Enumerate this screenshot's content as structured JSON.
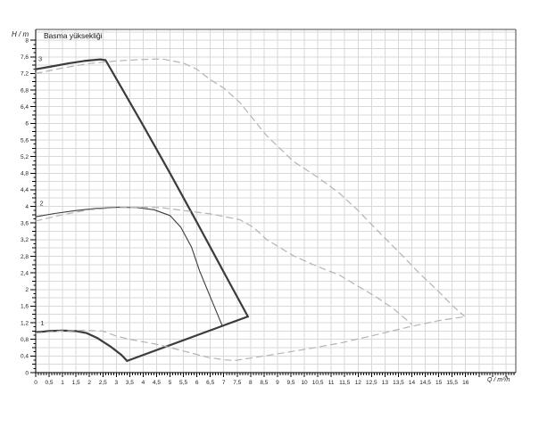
{
  "page": {
    "background": "#ffffff"
  },
  "chart_data": {
    "type": "line",
    "title": "Basma yüksekliği",
    "y_axis_label": "H / m",
    "x_axis_label": "Q / m³/h",
    "x_range": [
      0,
      17.87
    ],
    "y_range": [
      0,
      8.26
    ],
    "grid": true,
    "x_grid_step": 0.5,
    "y_grid_step": 0.2,
    "x_tick_label_step": 0.5,
    "y_tick_label_step": 0.4,
    "x_tick_labels": [
      "0",
      "0,5",
      "1",
      "1,5",
      "2",
      "2,5",
      "3",
      "3,5",
      "4",
      "4,5",
      "5",
      "5,5",
      "6",
      "6,5",
      "7",
      "7,5",
      "8",
      "8,5",
      "9",
      "9,5",
      "10",
      "10,5",
      "11",
      "11,5",
      "12",
      "12,5",
      "13",
      "13,5",
      "14",
      "14,5",
      "15",
      "15,5",
      "16"
    ],
    "y_tick_labels": [
      "0",
      "0,4",
      "0,8",
      "1,2",
      "1,6",
      "2",
      "2,4",
      "2,8",
      "3,2",
      "3,6",
      "4",
      "4,4",
      "4,8",
      "5,2",
      "5,6",
      "6",
      "6,4",
      "6,8",
      "7,2",
      "7,6",
      "8"
    ],
    "colors": {
      "solid_curve": "#3c3c3c",
      "dashed_curve": "#b4b4b4",
      "grid": "#d9d9d9",
      "axis": "#000000",
      "border": "#4a4a4a",
      "tick_text": "#222222"
    },
    "legend_position": "none",
    "curve_labels": [
      {
        "text": "3",
        "x": 0.1,
        "y": 7.5
      },
      {
        "text": "2",
        "x": 0.15,
        "y": 4.02
      },
      {
        "text": "1",
        "x": 0.18,
        "y": 1.14
      }
    ],
    "series": [
      {
        "name": "curve-3-max-speed-solid",
        "style": "solid",
        "width": 2.2,
        "points": [
          [
            0,
            7.3
          ],
          [
            0.6,
            7.37
          ],
          [
            1.2,
            7.44
          ],
          [
            1.8,
            7.5
          ],
          [
            2.4,
            7.54
          ],
          [
            2.6,
            7.52
          ],
          [
            3.2,
            6.85
          ],
          [
            4,
            5.95
          ],
          [
            5,
            4.8
          ],
          [
            6,
            3.62
          ],
          [
            7,
            2.42
          ],
          [
            7.9,
            1.35
          ]
        ]
      },
      {
        "name": "solid-envelope-max-flow-edge",
        "style": "solid",
        "width": 2.2,
        "points": [
          [
            3.4,
            0.28
          ],
          [
            7.9,
            1.35
          ]
        ]
      },
      {
        "name": "curve-1-min-speed-solid",
        "style": "solid",
        "width": 2.2,
        "points": [
          [
            0,
            0.97
          ],
          [
            0.5,
            1.0
          ],
          [
            1,
            1.01
          ],
          [
            1.5,
            1.0
          ],
          [
            1.9,
            0.95
          ],
          [
            2.3,
            0.83
          ],
          [
            2.8,
            0.62
          ],
          [
            3.2,
            0.42
          ],
          [
            3.4,
            0.28
          ]
        ]
      },
      {
        "name": "curve-2-mid-speed-solid",
        "style": "solid",
        "width": 1.1,
        "points": [
          [
            0,
            3.75
          ],
          [
            0.7,
            3.83
          ],
          [
            1.5,
            3.9
          ],
          [
            2.2,
            3.95
          ],
          [
            3,
            3.98
          ],
          [
            3.8,
            3.97
          ],
          [
            4.4,
            3.92
          ],
          [
            5,
            3.78
          ],
          [
            5.4,
            3.5
          ],
          [
            5.8,
            3.02
          ],
          [
            6.1,
            2.45
          ],
          [
            6.5,
            1.82
          ],
          [
            6.95,
            1.12
          ]
        ]
      },
      {
        "name": "dashed-curve-max-speed",
        "style": "dashed",
        "width": 1.2,
        "points": [
          [
            0,
            7.2
          ],
          [
            1,
            7.33
          ],
          [
            2,
            7.44
          ],
          [
            3,
            7.5
          ],
          [
            4,
            7.54
          ],
          [
            4.7,
            7.55
          ],
          [
            5.5,
            7.45
          ],
          [
            6,
            7.3
          ],
          [
            6.5,
            7.05
          ],
          [
            7,
            6.85
          ],
          [
            7.6,
            6.5
          ],
          [
            8.6,
            5.7
          ],
          [
            9.6,
            5.08
          ],
          [
            10.5,
            4.7
          ],
          [
            11.3,
            4.32
          ],
          [
            12,
            3.9
          ],
          [
            12.9,
            3.3
          ],
          [
            13.6,
            2.85
          ],
          [
            14.3,
            2.38
          ],
          [
            15,
            1.95
          ],
          [
            15.5,
            1.62
          ],
          [
            15.95,
            1.36
          ]
        ]
      },
      {
        "name": "dashed-curve-mid-speed",
        "style": "dashed",
        "width": 1.2,
        "points": [
          [
            0,
            3.65
          ],
          [
            1,
            3.8
          ],
          [
            2,
            3.92
          ],
          [
            3,
            3.97
          ],
          [
            4,
            3.98
          ],
          [
            4.7,
            3.97
          ],
          [
            5.5,
            3.9
          ],
          [
            6.5,
            3.82
          ],
          [
            7.6,
            3.68
          ],
          [
            8.1,
            3.5
          ],
          [
            8.6,
            3.2
          ],
          [
            9.6,
            2.81
          ],
          [
            10.5,
            2.55
          ],
          [
            11.3,
            2.35
          ],
          [
            12.6,
            1.85
          ],
          [
            13.3,
            1.55
          ],
          [
            14,
            1.16
          ]
        ]
      },
      {
        "name": "dashed-curve-min-speed-and-limit",
        "style": "dashed",
        "width": 1.2,
        "points": [
          [
            0,
            0.95
          ],
          [
            0.9,
            1.0
          ],
          [
            1.8,
            1.02
          ],
          [
            2.5,
            1.0
          ],
          [
            3,
            0.88
          ],
          [
            3.5,
            0.8
          ],
          [
            4.6,
            0.67
          ],
          [
            5.5,
            0.52
          ],
          [
            6.4,
            0.37
          ],
          [
            7,
            0.31
          ],
          [
            7.4,
            0.29
          ],
          [
            8,
            0.35
          ],
          [
            9,
            0.45
          ],
          [
            10.2,
            0.58
          ],
          [
            11.4,
            0.72
          ],
          [
            12.6,
            0.9
          ],
          [
            13.9,
            1.1
          ],
          [
            15,
            1.25
          ],
          [
            16,
            1.35
          ]
        ]
      }
    ]
  }
}
